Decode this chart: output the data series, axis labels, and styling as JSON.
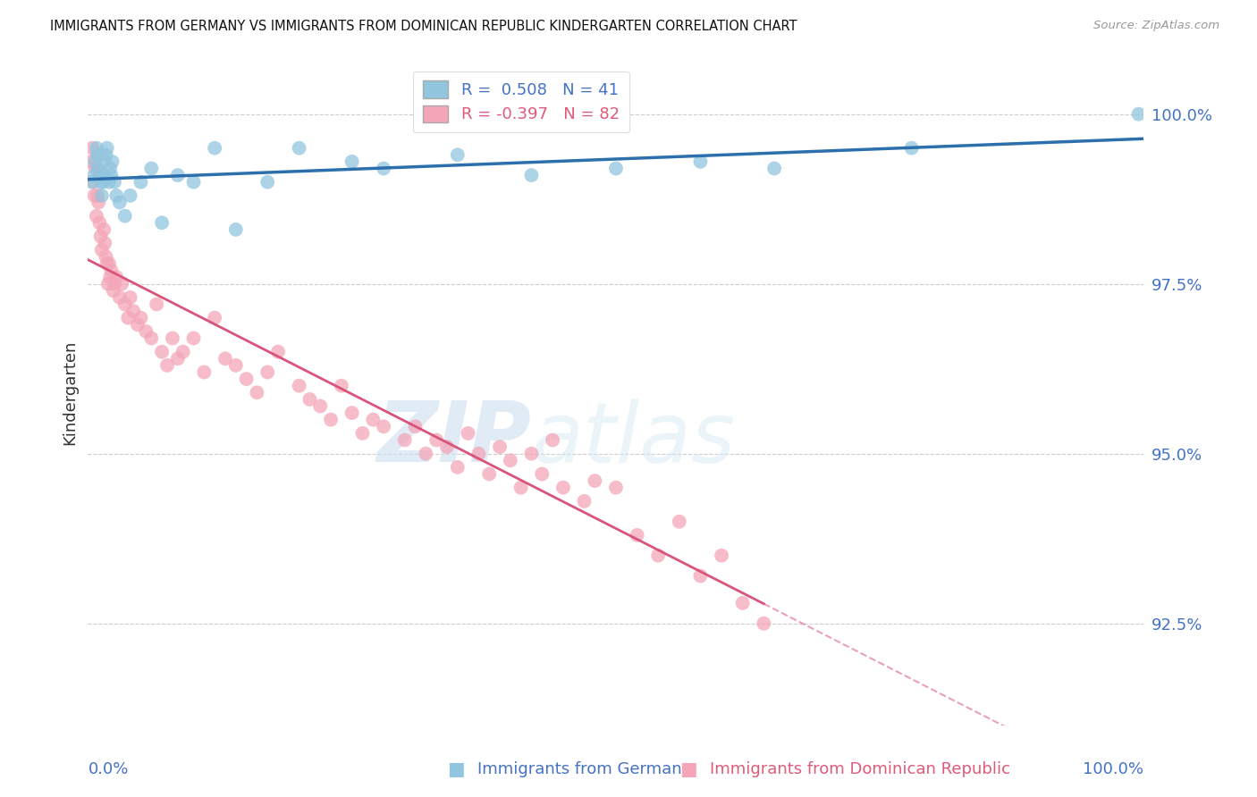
{
  "title": "IMMIGRANTS FROM GERMANY VS IMMIGRANTS FROM DOMINICAN REPUBLIC KINDERGARTEN CORRELATION CHART",
  "source": "Source: ZipAtlas.com",
  "ylabel": "Kindergarten",
  "y_ticks": [
    92.5,
    95.0,
    97.5,
    100.0
  ],
  "y_tick_labels": [
    "92.5%",
    "95.0%",
    "97.5%",
    "100.0%"
  ],
  "y_min": 91.0,
  "y_max": 100.8,
  "x_min": 0.0,
  "x_max": 100.0,
  "color_germany": "#92c5de",
  "color_dominican": "#f4a6b8",
  "color_germany_line": "#2c6fad",
  "color_dominican_line": "#d9547a",
  "legend_germany": "R =  0.508   N = 41",
  "legend_dominican": "R = -0.397   N = 82",
  "legend_color_germany": "#4472C4",
  "legend_color_dominican": "#e05a7a",
  "watermark_zip": "ZIP",
  "watermark_atlas": "atlas",
  "bottom_label_germany": "Immigrants from Germany",
  "bottom_label_dominican": "Immigrants from Dominican Republic",
  "germany_x": [
    0.4,
    0.6,
    0.7,
    0.8,
    0.9,
    1.0,
    1.1,
    1.2,
    1.3,
    1.4,
    1.5,
    1.6,
    1.7,
    1.8,
    2.0,
    2.1,
    2.2,
    2.3,
    2.5,
    2.7,
    3.0,
    3.5,
    4.0,
    5.0,
    6.0,
    7.0,
    8.5,
    10.0,
    12.0,
    14.0,
    17.0,
    20.0,
    25.0,
    28.0,
    35.0,
    42.0,
    50.0,
    58.0,
    65.0,
    78.0,
    99.5
  ],
  "germany_y": [
    99.0,
    99.1,
    99.3,
    99.5,
    99.4,
    99.2,
    99.1,
    99.0,
    98.8,
    99.0,
    99.1,
    99.3,
    99.4,
    99.5,
    99.0,
    99.2,
    99.1,
    99.3,
    99.0,
    98.8,
    98.7,
    98.5,
    98.8,
    99.0,
    99.2,
    98.4,
    99.1,
    99.0,
    99.5,
    98.3,
    99.0,
    99.5,
    99.3,
    99.2,
    99.4,
    99.1,
    99.2,
    99.3,
    99.2,
    99.5,
    100.0
  ],
  "dominican_x": [
    0.3,
    0.4,
    0.5,
    0.6,
    0.7,
    0.8,
    0.9,
    1.0,
    1.1,
    1.2,
    1.3,
    1.5,
    1.6,
    1.7,
    1.8,
    1.9,
    2.0,
    2.1,
    2.2,
    2.4,
    2.5,
    2.7,
    3.0,
    3.2,
    3.5,
    3.8,
    4.0,
    4.3,
    4.7,
    5.0,
    5.5,
    6.0,
    6.5,
    7.0,
    7.5,
    8.0,
    8.5,
    9.0,
    10.0,
    11.0,
    12.0,
    13.0,
    14.0,
    15.0,
    16.0,
    17.0,
    18.0,
    20.0,
    21.0,
    22.0,
    23.0,
    24.0,
    25.0,
    26.0,
    27.0,
    28.0,
    30.0,
    31.0,
    32.0,
    33.0,
    34.0,
    35.0,
    36.0,
    37.0,
    38.0,
    39.0,
    40.0,
    41.0,
    42.0,
    43.0,
    44.0,
    45.0,
    47.0,
    48.0,
    50.0,
    52.0,
    54.0,
    56.0,
    58.0,
    60.0,
    62.0,
    64.0
  ],
  "dominican_y": [
    99.3,
    99.5,
    99.0,
    98.8,
    99.2,
    98.5,
    98.8,
    98.7,
    98.4,
    98.2,
    98.0,
    98.3,
    98.1,
    97.9,
    97.8,
    97.5,
    97.8,
    97.6,
    97.7,
    97.4,
    97.5,
    97.6,
    97.3,
    97.5,
    97.2,
    97.0,
    97.3,
    97.1,
    96.9,
    97.0,
    96.8,
    96.7,
    97.2,
    96.5,
    96.3,
    96.7,
    96.4,
    96.5,
    96.7,
    96.2,
    97.0,
    96.4,
    96.3,
    96.1,
    95.9,
    96.2,
    96.5,
    96.0,
    95.8,
    95.7,
    95.5,
    96.0,
    95.6,
    95.3,
    95.5,
    95.4,
    95.2,
    95.4,
    95.0,
    95.2,
    95.1,
    94.8,
    95.3,
    95.0,
    94.7,
    95.1,
    94.9,
    94.5,
    95.0,
    94.7,
    95.2,
    94.5,
    94.3,
    94.6,
    94.5,
    93.8,
    93.5,
    94.0,
    93.2,
    93.5,
    92.8,
    92.5
  ]
}
